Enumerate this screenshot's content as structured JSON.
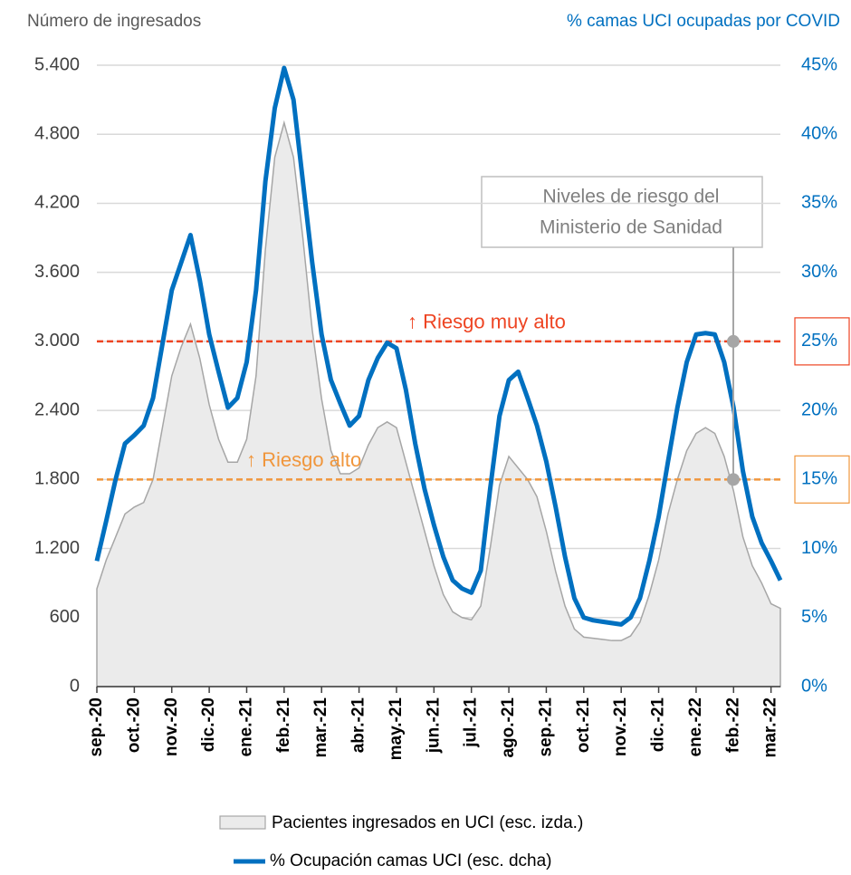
{
  "chart_data": {
    "type": "line",
    "y_axis_title": "Número de ingresados",
    "y2_axis_title": "% camas UCI ocupadas por COVID",
    "categories": [
      "sep.-20",
      null,
      null,
      null,
      "oct.-20",
      null,
      null,
      null,
      "nov.-20",
      null,
      null,
      null,
      "dic.-20",
      null,
      null,
      null,
      "ene.-21",
      null,
      null,
      null,
      "feb.-21",
      null,
      null,
      null,
      "mar.-21",
      null,
      null,
      null,
      "abr.-21",
      null,
      null,
      null,
      "may.-21",
      null,
      null,
      null,
      "jun.-21",
      null,
      null,
      null,
      "jul.-21",
      null,
      null,
      null,
      "ago.-21",
      null,
      null,
      null,
      "sep.-21",
      null,
      null,
      null,
      "oct.-21",
      null,
      null,
      null,
      "nov.-21",
      null,
      null,
      null,
      "dic.-21",
      null,
      null,
      null,
      "ene.-22",
      null,
      null,
      null,
      "feb.-22",
      null,
      null,
      null,
      "mar.-22",
      null
    ],
    "series": [
      {
        "name": "Pacientes ingresados en UCI (esc. izda.)",
        "type": "area",
        "color": "#ebebeb",
        "line_color": "#a6a6a6",
        "values": [
          850,
          1100,
          1300,
          1500,
          1560,
          1600,
          1800,
          2250,
          2700,
          2950,
          3150,
          2850,
          2450,
          2150,
          1950,
          1950,
          2150,
          2700,
          3800,
          4600,
          4900,
          4600,
          3900,
          3100,
          2500,
          2050,
          1850,
          1850,
          1900,
          2100,
          2250,
          2300,
          2250,
          1950,
          1650,
          1350,
          1050,
          800,
          650,
          600,
          580,
          700,
          1200,
          1750,
          2000,
          1900,
          1800,
          1650,
          1350,
          1000,
          700,
          500,
          430,
          420,
          410,
          400,
          400,
          440,
          560,
          800,
          1100,
          1500,
          1800,
          2050,
          2200,
          2250,
          2200,
          2000,
          1700,
          1300,
          1050,
          900,
          720,
          680
        ]
      },
      {
        "name": "% Ocupación camas UCI (esc. dcha)",
        "type": "line",
        "axis": "y2",
        "color": "#0070c0",
        "values": [
          9.1,
          12,
          15,
          17.6,
          18.2,
          18.9,
          20.9,
          24.8,
          28.7,
          30.7,
          32.7,
          29.4,
          25.5,
          22.8,
          20.2,
          20.9,
          23.5,
          28.7,
          36.6,
          41.9,
          44.8,
          42.5,
          36.6,
          30.7,
          25.5,
          22.2,
          20.5,
          18.9,
          19.6,
          22.2,
          23.8,
          24.9,
          24.5,
          21.5,
          17.6,
          14.3,
          11.7,
          9.4,
          7.7,
          7.1,
          6.8,
          8.4,
          14.3,
          19.6,
          22.2,
          22.8,
          20.9,
          18.9,
          16.3,
          13,
          9.4,
          6.4,
          5,
          4.8,
          4.7,
          4.6,
          4.5,
          5,
          6.4,
          9.1,
          12.3,
          16.3,
          20.2,
          23.5,
          25.5,
          25.6,
          25.5,
          23.5,
          20.2,
          15.6,
          12.3,
          10.4,
          9.1,
          7.7
        ]
      }
    ],
    "ylim": [
      0,
      5400
    ],
    "yticks": [
      0,
      600,
      {
        "value": 1200,
        "label": "1.200"
      },
      {
        "value": 1800,
        "label": "1.800"
      },
      {
        "value": 2400,
        "label": "2.400"
      },
      {
        "value": 3000,
        "label": "3.000"
      },
      {
        "value": 3600,
        "label": "3.600"
      },
      {
        "value": 4200,
        "label": "4.200"
      },
      {
        "value": 4800,
        "label": "4.800"
      },
      {
        "value": 5400,
        "label": "5.400"
      }
    ],
    "y2lim": [
      0,
      45
    ],
    "y2ticks": [
      {
        "value": 0,
        "label": "0%"
      },
      {
        "value": 5,
        "label": "5%"
      },
      {
        "value": 10,
        "label": "10%"
      },
      {
        "value": 15,
        "label": "15%"
      },
      {
        "value": 20,
        "label": "20%"
      },
      {
        "value": 25,
        "label": "25%"
      },
      {
        "value": 30,
        "label": "30%"
      },
      {
        "value": 35,
        "label": "35%"
      },
      {
        "value": 40,
        "label": "40%"
      },
      {
        "value": 45,
        "label": "45%"
      }
    ],
    "grid": true,
    "reference_lines": [
      {
        "value": 25,
        "axis": "y2",
        "label": "↑ Riesgo muy alto",
        "color": "#ee4422"
      },
      {
        "value": 15,
        "axis": "y2",
        "label": "↑ Riesgo alto",
        "color": "#f0963c"
      }
    ],
    "annotation": {
      "lines": [
        "Niveles de riesgo del",
        "Ministerio de Sanidad"
      ]
    }
  }
}
